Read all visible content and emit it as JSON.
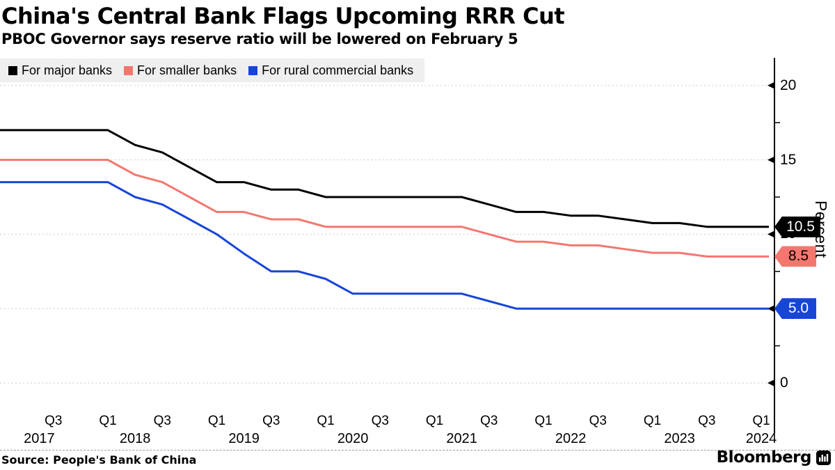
{
  "header": {
    "title": "China's Central Bank Flags Upcoming RRR Cut",
    "subtitle": "PBOC Governor says reserve ratio will be lowered on February 5"
  },
  "legend": {
    "items": [
      {
        "label": "For major banks",
        "color": "#000000"
      },
      {
        "label": "For smaller banks",
        "color": "#f4776f"
      },
      {
        "label": "For rural commercial banks",
        "color": "#1745d8"
      }
    ]
  },
  "chart_data": {
    "type": "line",
    "title": "China's Central Bank Flags Upcoming RRR Cut",
    "subtitle": "PBOC Governor says reserve ratio will be lowered on February 5",
    "ylabel": "Percent",
    "ylim": [
      0,
      21.9
    ],
    "yticks": [
      0,
      5,
      10,
      15,
      20
    ],
    "yticks_minor": [
      2.5,
      7.5,
      12.5,
      17.5
    ],
    "grid": "dashed horizontal lines at major yticks",
    "legend_position": "top-left",
    "x_unit": "decimal years (quarterly reserve requirement ratio, end-of-quarter value)",
    "xticks": [
      {
        "label": "Q3",
        "t": 2017.5
      },
      {
        "label": "Q1",
        "t": 2018.0
      },
      {
        "label": "Q3",
        "t": 2018.5
      },
      {
        "label": "Q1",
        "t": 2019.0
      },
      {
        "label": "Q3",
        "t": 2019.5
      },
      {
        "label": "Q1",
        "t": 2020.0
      },
      {
        "label": "Q3",
        "t": 2020.5
      },
      {
        "label": "Q1",
        "t": 2021.0
      },
      {
        "label": "Q3",
        "t": 2021.5
      },
      {
        "label": "Q1",
        "t": 2022.0
      },
      {
        "label": "Q3",
        "t": 2022.5
      },
      {
        "label": "Q1",
        "t": 2023.0
      },
      {
        "label": "Q3",
        "t": 2023.5
      },
      {
        "label": "Q1",
        "t": 2024.0
      }
    ],
    "year_ticks": [
      {
        "label": "2017",
        "t": 2017.37
      },
      {
        "label": "2018",
        "t": 2018.25
      },
      {
        "label": "2019",
        "t": 2019.25
      },
      {
        "label": "2020",
        "t": 2020.25
      },
      {
        "label": "2021",
        "t": 2021.25
      },
      {
        "label": "2022",
        "t": 2022.25
      },
      {
        "label": "2023",
        "t": 2023.25
      },
      {
        "label": "2024",
        "t": 2024.0
      }
    ],
    "series": [
      {
        "name": "For major banks",
        "color": "#000000",
        "end_label": "10.5",
        "end_label_text_color": "#ffffff",
        "points": [
          [
            2017.0,
            17
          ],
          [
            2018.0,
            17
          ],
          [
            2018.25,
            16
          ],
          [
            2018.5,
            15.5
          ],
          [
            2018.75,
            14.5
          ],
          [
            2019.0,
            13.5
          ],
          [
            2019.25,
            13.5
          ],
          [
            2019.5,
            13
          ],
          [
            2019.75,
            13
          ],
          [
            2020.0,
            12.5
          ],
          [
            2021.25,
            12.5
          ],
          [
            2021.5,
            12
          ],
          [
            2021.75,
            11.5
          ],
          [
            2022.0,
            11.5
          ],
          [
            2022.25,
            11.25
          ],
          [
            2022.5,
            11.25
          ],
          [
            2022.75,
            11
          ],
          [
            2023.0,
            10.75
          ],
          [
            2023.25,
            10.75
          ],
          [
            2023.5,
            10.5
          ],
          [
            2024.07,
            10.5
          ]
        ]
      },
      {
        "name": "For smaller banks",
        "color": "#f4776f",
        "end_label": "8.5",
        "end_label_text_color": "#000000",
        "points": [
          [
            2017.0,
            15
          ],
          [
            2018.0,
            15
          ],
          [
            2018.25,
            14
          ],
          [
            2018.5,
            13.5
          ],
          [
            2018.75,
            12.5
          ],
          [
            2019.0,
            11.5
          ],
          [
            2019.25,
            11.5
          ],
          [
            2019.5,
            11
          ],
          [
            2019.75,
            11
          ],
          [
            2020.0,
            10.5
          ],
          [
            2021.25,
            10.5
          ],
          [
            2021.5,
            10
          ],
          [
            2021.75,
            9.5
          ],
          [
            2022.0,
            9.5
          ],
          [
            2022.25,
            9.25
          ],
          [
            2022.5,
            9.25
          ],
          [
            2022.75,
            9
          ],
          [
            2023.0,
            8.75
          ],
          [
            2023.25,
            8.75
          ],
          [
            2023.5,
            8.5
          ],
          [
            2024.07,
            8.5
          ]
        ]
      },
      {
        "name": "For rural commercial banks",
        "color": "#1745d8",
        "end_label": "5.0",
        "end_label_text_color": "#ffffff",
        "points": [
          [
            2017.0,
            13.5
          ],
          [
            2018.0,
            13.5
          ],
          [
            2018.25,
            12.5
          ],
          [
            2018.5,
            12
          ],
          [
            2018.75,
            11
          ],
          [
            2019.0,
            10
          ],
          [
            2019.25,
            8.7
          ],
          [
            2019.5,
            7.5
          ],
          [
            2019.75,
            7.5
          ],
          [
            2020.0,
            7
          ],
          [
            2020.25,
            6
          ],
          [
            2021.25,
            6
          ],
          [
            2021.5,
            5.5
          ],
          [
            2021.75,
            5
          ],
          [
            2024.07,
            5
          ]
        ]
      }
    ]
  },
  "footer": {
    "source": "Source: People's Bank of China",
    "brand": "Bloomberg"
  }
}
